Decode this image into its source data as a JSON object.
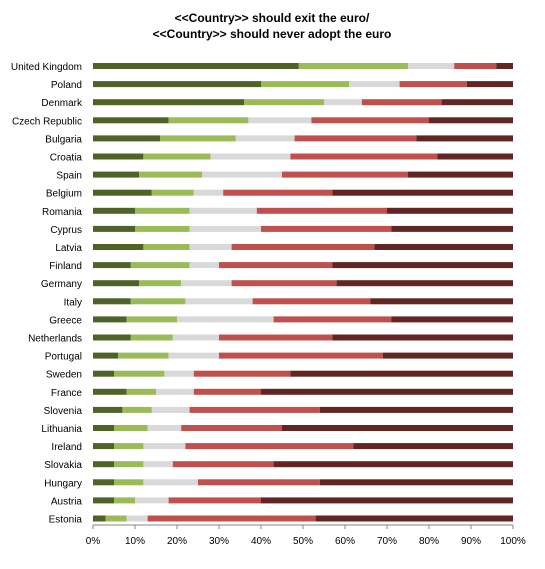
{
  "chart_data": {
    "type": "bar",
    "orientation": "horizontal",
    "stacked": true,
    "percent_stacked": true,
    "title": [
      "<<Country>>  should exit the  euro/",
      "<<Country>> should  never adopt the euro"
    ],
    "categories": [
      "United Kingdom",
      "Poland",
      "Denmark",
      "Czech Republic",
      "Bulgaria",
      "Croatia",
      "Spain",
      "Belgium",
      "Romania",
      "Cyprus",
      "Latvia",
      "Finland",
      "Germany",
      "Italy",
      "Greece",
      "Netherlands",
      "Portugal",
      "Sweden",
      "France",
      "Slovenia",
      "Lithuania",
      "Ireland",
      "Slovakia",
      "Hungary",
      "Austria",
      "Estonia"
    ],
    "series": [
      {
        "color": "#4f6228",
        "values": [
          49,
          40,
          36,
          18,
          16,
          12,
          11,
          14,
          10,
          10,
          12,
          9,
          11,
          9,
          8,
          9,
          6,
          5,
          8,
          7,
          5,
          5,
          5,
          5,
          5,
          3
        ]
      },
      {
        "color": "#9bbb59",
        "values": [
          26,
          21,
          19,
          19,
          18,
          16,
          15,
          10,
          13,
          13,
          11,
          14,
          10,
          13,
          12,
          10,
          12,
          12,
          7,
          7,
          8,
          7,
          7,
          7,
          5,
          5
        ]
      },
      {
        "color": "#d9d9d9",
        "values": [
          11,
          12,
          9,
          15,
          14,
          19,
          19,
          7,
          16,
          17,
          10,
          7,
          12,
          16,
          23,
          11,
          12,
          7,
          9,
          9,
          8,
          10,
          7,
          13,
          8,
          5
        ]
      },
      {
        "color": "#c0504d",
        "values": [
          10,
          16,
          19,
          28,
          29,
          35,
          30,
          26,
          31,
          31,
          34,
          27,
          25,
          28,
          28,
          27,
          39,
          23,
          16,
          31,
          24,
          40,
          24,
          29,
          22,
          40
        ]
      },
      {
        "color": "#632523",
        "values": [
          4,
          11,
          17,
          20,
          23,
          18,
          25,
          43,
          30,
          29,
          33,
          43,
          42,
          34,
          29,
          43,
          31,
          53,
          60,
          46,
          55,
          38,
          57,
          46,
          60,
          47
        ]
      }
    ],
    "xlim": [
      0,
      100
    ],
    "x_ticks": [
      "0%",
      "10%",
      "20%",
      "30%",
      "40%",
      "50%",
      "60%",
      "70%",
      "80%",
      "90%",
      "100%"
    ],
    "grid": false,
    "legend": "none"
  }
}
